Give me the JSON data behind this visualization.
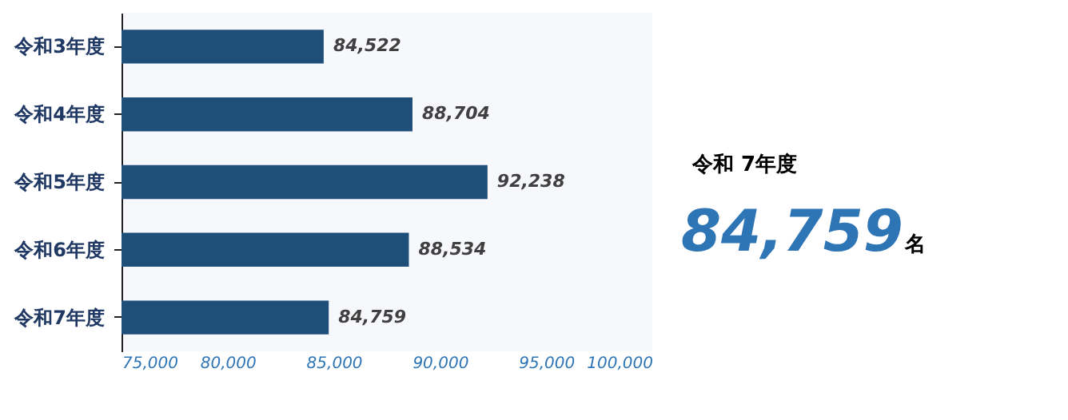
{
  "chart_data": [
    {
      "type": "bar",
      "orientation": "horizontal",
      "categories": [
        "令和3年度",
        "令和4年度",
        "令和5年度",
        "令和6年度",
        "令和7年度"
      ],
      "values": [
        84522,
        88704,
        92238,
        88534,
        84759
      ],
      "color": "#1f4e79",
      "xlim": [
        75000,
        100000
      ],
      "xticks": [
        {
          "value": 75000,
          "label": "75,000"
        },
        {
          "value": 80000,
          "label": "80,000"
        },
        {
          "value": 85000,
          "label": "85,000"
        },
        {
          "value": 90000,
          "label": "90,000"
        },
        {
          "value": 95000,
          "label": "95,000"
        },
        {
          "value": 100000,
          "label": "100,000"
        }
      ],
      "value_labels": [
        "84,522",
        "88,704",
        "92,238",
        "88,534",
        "84,759"
      ],
      "grid": false
    },
    {
      "type": "other",
      "title": "令和 7年度",
      "annotations": [
        "84,759",
        "名"
      ]
    }
  ]
}
